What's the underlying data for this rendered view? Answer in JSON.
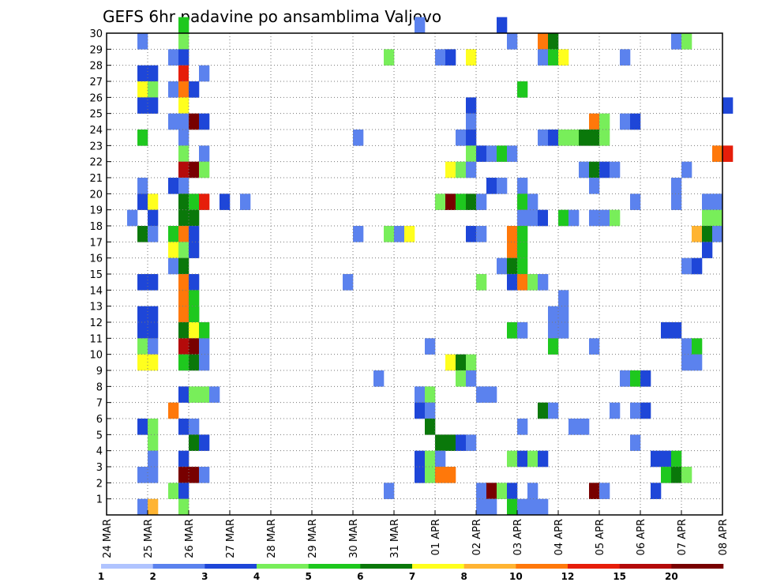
{
  "chart_data": {
    "type": "heatmap",
    "title": "GEFS 6hr padavine po ansamblima Valjevo",
    "xlabel": "",
    "ylabel": "",
    "x_tick_labels": [
      "24 MAR",
      "25 MAR",
      "26 MAR",
      "27 MAR",
      "28 MAR",
      "29 MAR",
      "30 MAR",
      "31 MAR",
      "01 APR",
      "02 APR",
      "03 APR",
      "04 APR",
      "05 APR",
      "06 APR",
      "07 APR",
      "08 APR"
    ],
    "y_tick_labels": [
      "1",
      "2",
      "3",
      "4",
      "5",
      "6",
      "7",
      "8",
      "9",
      "10",
      "11",
      "12",
      "13",
      "14",
      "15",
      "16",
      "17",
      "18",
      "19",
      "20",
      "21",
      "22",
      "23",
      "24",
      "25",
      "26",
      "27",
      "28",
      "29",
      "30"
    ],
    "time_steps_per_day": 4,
    "x_range_steps": [
      0,
      60
    ],
    "y_range": [
      0,
      30
    ],
    "grid": true,
    "grid_style": "dotted",
    "legend_placement": "bottom",
    "colorbar": {
      "labels": [
        "1",
        "2",
        "3",
        "4",
        "5",
        "6",
        "7",
        "8",
        "10",
        "12",
        "15",
        "20"
      ],
      "colors": [
        "#b0c4ff",
        "#5b82ee",
        "#1e46d8",
        "#78ee5a",
        "#1ec81e",
        "#0a780a",
        "#ffff1e",
        "#ffb432",
        "#ff780a",
        "#e61e0a",
        "#b40a0a",
        "#780000"
      ]
    },
    "cells": [
      [
        7,
        30,
        4
      ],
      [
        30,
        30,
        1
      ],
      [
        38,
        30,
        2
      ],
      [
        3,
        29,
        1
      ],
      [
        7,
        29,
        3
      ],
      [
        39,
        29,
        1
      ],
      [
        42,
        29,
        8
      ],
      [
        43,
        29,
        5
      ],
      [
        55,
        29,
        1
      ],
      [
        56,
        29,
        3
      ],
      [
        6,
        28,
        1
      ],
      [
        7,
        28,
        2
      ],
      [
        27,
        28,
        3
      ],
      [
        32,
        28,
        1
      ],
      [
        33,
        28,
        2
      ],
      [
        35,
        28,
        6
      ],
      [
        42,
        28,
        1
      ],
      [
        43,
        28,
        4
      ],
      [
        44,
        28,
        6
      ],
      [
        50,
        28,
        1
      ],
      [
        3,
        27,
        2
      ],
      [
        4,
        27,
        2
      ],
      [
        7,
        27,
        9
      ],
      [
        8,
        27,
        12
      ],
      [
        9,
        27,
        1
      ],
      [
        3,
        26,
        6
      ],
      [
        4,
        26,
        3
      ],
      [
        6,
        26,
        1
      ],
      [
        7,
        26,
        8
      ],
      [
        8,
        26,
        2
      ],
      [
        40,
        26,
        4
      ],
      [
        3,
        25,
        2
      ],
      [
        4,
        25,
        2
      ],
      [
        7,
        25,
        6
      ],
      [
        35,
        25,
        2
      ],
      [
        60,
        25,
        2
      ],
      [
        6,
        24,
        1
      ],
      [
        7,
        24,
        1
      ],
      [
        8,
        24,
        11
      ],
      [
        9,
        24,
        2
      ],
      [
        35,
        24,
        1
      ],
      [
        47,
        24,
        8
      ],
      [
        48,
        24,
        3
      ],
      [
        50,
        24,
        1
      ],
      [
        51,
        24,
        2
      ],
      [
        3,
        23,
        4
      ],
      [
        7,
        23,
        1
      ],
      [
        24,
        23,
        1
      ],
      [
        34,
        23,
        1
      ],
      [
        35,
        23,
        2
      ],
      [
        42,
        23,
        1
      ],
      [
        43,
        23,
        2
      ],
      [
        44,
        23,
        3
      ],
      [
        45,
        23,
        3
      ],
      [
        46,
        23,
        5
      ],
      [
        47,
        23,
        5
      ],
      [
        48,
        23,
        3
      ],
      [
        7,
        22,
        3
      ],
      [
        9,
        22,
        1
      ],
      [
        35,
        22,
        3
      ],
      [
        36,
        22,
        2
      ],
      [
        37,
        22,
        1
      ],
      [
        38,
        22,
        4
      ],
      [
        39,
        22,
        1
      ],
      [
        59,
        22,
        8
      ],
      [
        60,
        22,
        9
      ],
      [
        7,
        21,
        10
      ],
      [
        8,
        21,
        11
      ],
      [
        9,
        21,
        3
      ],
      [
        33,
        21,
        6
      ],
      [
        34,
        21,
        3
      ],
      [
        35,
        21,
        1
      ],
      [
        46,
        21,
        1
      ],
      [
        47,
        21,
        5
      ],
      [
        48,
        21,
        2
      ],
      [
        49,
        21,
        1
      ],
      [
        56,
        21,
        1
      ],
      [
        3,
        20,
        1
      ],
      [
        6,
        20,
        2
      ],
      [
        7,
        20,
        1
      ],
      [
        37,
        20,
        2
      ],
      [
        38,
        20,
        1
      ],
      [
        40,
        20,
        1
      ],
      [
        47,
        20,
        1
      ],
      [
        55,
        20,
        1
      ],
      [
        3,
        19,
        2
      ],
      [
        4,
        19,
        6
      ],
      [
        7,
        19,
        5
      ],
      [
        8,
        19,
        4
      ],
      [
        9,
        19,
        9
      ],
      [
        11,
        19,
        2
      ],
      [
        13,
        19,
        1
      ],
      [
        32,
        19,
        3
      ],
      [
        33,
        19,
        11
      ],
      [
        34,
        19,
        4
      ],
      [
        35,
        19,
        5
      ],
      [
        36,
        19,
        1
      ],
      [
        40,
        19,
        4
      ],
      [
        41,
        19,
        1
      ],
      [
        51,
        19,
        1
      ],
      [
        55,
        19,
        1
      ],
      [
        58,
        19,
        1
      ],
      [
        59,
        19,
        1
      ],
      [
        2,
        18,
        1
      ],
      [
        4,
        18,
        2
      ],
      [
        7,
        18,
        5
      ],
      [
        8,
        18,
        5
      ],
      [
        40,
        18,
        1
      ],
      [
        41,
        18,
        1
      ],
      [
        42,
        18,
        2
      ],
      [
        43,
        18,
        12
      ],
      [
        44,
        18,
        4
      ],
      [
        45,
        18,
        1
      ],
      [
        47,
        18,
        1
      ],
      [
        48,
        18,
        1
      ],
      [
        49,
        18,
        3
      ],
      [
        58,
        18,
        3
      ],
      [
        59,
        18,
        3
      ],
      [
        3,
        17,
        5
      ],
      [
        4,
        17,
        1
      ],
      [
        6,
        17,
        4
      ],
      [
        7,
        17,
        8
      ],
      [
        8,
        17,
        2
      ],
      [
        24,
        17,
        1
      ],
      [
        27,
        17,
        3
      ],
      [
        28,
        17,
        1
      ],
      [
        29,
        17,
        6
      ],
      [
        35,
        17,
        2
      ],
      [
        36,
        17,
        1
      ],
      [
        39,
        17,
        8
      ],
      [
        40,
        17,
        4
      ],
      [
        57,
        17,
        7
      ],
      [
        58,
        17,
        5
      ],
      [
        59,
        17,
        1
      ],
      [
        6,
        16,
        6
      ],
      [
        7,
        16,
        3
      ],
      [
        8,
        16,
        2
      ],
      [
        39,
        16,
        8
      ],
      [
        40,
        16,
        4
      ],
      [
        58,
        16,
        2
      ],
      [
        6,
        15,
        1
      ],
      [
        7,
        15,
        5
      ],
      [
        38,
        15,
        1
      ],
      [
        39,
        15,
        5
      ],
      [
        40,
        15,
        4
      ],
      [
        56,
        15,
        1
      ],
      [
        57,
        15,
        2
      ],
      [
        3,
        14,
        2
      ],
      [
        4,
        14,
        2
      ],
      [
        7,
        14,
        8
      ],
      [
        8,
        14,
        2
      ],
      [
        23,
        14,
        1
      ],
      [
        36,
        14,
        3
      ],
      [
        39,
        14,
        2
      ],
      [
        40,
        14,
        8
      ],
      [
        41,
        14,
        3
      ],
      [
        42,
        14,
        1
      ],
      [
        7,
        13,
        8
      ],
      [
        8,
        13,
        4
      ],
      [
        44,
        13,
        1
      ],
      [
        7,
        12,
        8
      ],
      [
        8,
        12,
        4
      ],
      [
        3,
        12,
        2
      ],
      [
        4,
        12,
        2
      ],
      [
        43,
        12,
        1
      ],
      [
        44,
        12,
        1
      ],
      [
        8,
        12,
        4
      ],
      [
        7,
        11,
        5
      ],
      [
        8,
        11,
        6
      ],
      [
        9,
        11,
        4
      ],
      [
        3,
        11,
        2
      ],
      [
        4,
        11,
        2
      ],
      [
        39,
        11,
        4
      ],
      [
        40,
        11,
        1
      ],
      [
        43,
        11,
        1
      ],
      [
        44,
        11,
        1
      ],
      [
        54,
        11,
        2
      ],
      [
        55,
        11,
        2
      ],
      [
        7,
        10,
        10
      ],
      [
        8,
        10,
        11
      ],
      [
        9,
        10,
        1
      ],
      [
        3,
        10,
        3
      ],
      [
        4,
        10,
        1
      ],
      [
        31,
        10,
        1
      ],
      [
        43,
        10,
        4
      ],
      [
        47,
        10,
        1
      ],
      [
        56,
        10,
        1
      ],
      [
        57,
        10,
        4
      ],
      [
        3,
        9,
        6
      ],
      [
        4,
        9,
        6
      ],
      [
        7,
        9,
        4
      ],
      [
        8,
        9,
        5
      ],
      [
        9,
        9,
        1
      ],
      [
        33,
        9,
        6
      ],
      [
        34,
        9,
        5
      ],
      [
        35,
        9,
        3
      ],
      [
        56,
        9,
        1
      ],
      [
        57,
        9,
        1
      ],
      [
        26,
        8,
        1
      ],
      [
        34,
        8,
        3
      ],
      [
        35,
        8,
        1
      ],
      [
        50,
        8,
        1
      ],
      [
        51,
        8,
        4
      ],
      [
        52,
        8,
        2
      ],
      [
        7,
        7,
        2
      ],
      [
        8,
        7,
        3
      ],
      [
        9,
        7,
        3
      ],
      [
        10,
        7,
        1
      ],
      [
        30,
        7,
        1
      ],
      [
        31,
        7,
        3
      ],
      [
        36,
        7,
        1
      ],
      [
        37,
        7,
        1
      ],
      [
        6,
        6,
        8
      ],
      [
        30,
        6,
        2
      ],
      [
        31,
        6,
        1
      ],
      [
        42,
        6,
        5
      ],
      [
        43,
        6,
        1
      ],
      [
        49,
        6,
        1
      ],
      [
        51,
        6,
        1
      ],
      [
        52,
        6,
        2
      ],
      [
        3,
        5,
        2
      ],
      [
        4,
        5,
        3
      ],
      [
        7,
        5,
        2
      ],
      [
        8,
        5,
        1
      ],
      [
        31,
        5,
        5
      ],
      [
        40,
        5,
        1
      ],
      [
        45,
        5,
        1
      ],
      [
        46,
        5,
        1
      ],
      [
        4,
        4,
        3
      ],
      [
        8,
        4,
        5
      ],
      [
        9,
        4,
        2
      ],
      [
        32,
        4,
        5
      ],
      [
        33,
        4,
        5
      ],
      [
        34,
        4,
        2
      ],
      [
        35,
        4,
        1
      ],
      [
        51,
        4,
        1
      ],
      [
        4,
        3,
        1
      ],
      [
        7,
        3,
        2
      ],
      [
        30,
        3,
        2
      ],
      [
        31,
        3,
        3
      ],
      [
        32,
        3,
        1
      ],
      [
        39,
        3,
        3
      ],
      [
        40,
        3,
        2
      ],
      [
        41,
        3,
        3
      ],
      [
        42,
        3,
        2
      ],
      [
        53,
        3,
        2
      ],
      [
        54,
        3,
        2
      ],
      [
        55,
        3,
        4
      ],
      [
        3,
        2,
        1
      ],
      [
        4,
        2,
        1
      ],
      [
        7,
        2,
        11
      ],
      [
        8,
        2,
        11
      ],
      [
        9,
        2,
        1
      ],
      [
        30,
        2,
        2
      ],
      [
        31,
        2,
        3
      ],
      [
        32,
        2,
        8
      ],
      [
        33,
        2,
        8
      ],
      [
        54,
        2,
        4
      ],
      [
        55,
        2,
        5
      ],
      [
        56,
        2,
        3
      ],
      [
        6,
        1,
        3
      ],
      [
        7,
        1,
        2
      ],
      [
        27,
        1,
        1
      ],
      [
        36,
        1,
        1
      ],
      [
        37,
        1,
        11
      ],
      [
        38,
        1,
        3
      ],
      [
        39,
        1,
        2
      ],
      [
        41,
        1,
        1
      ],
      [
        47,
        1,
        11
      ],
      [
        48,
        1,
        1
      ],
      [
        53,
        1,
        2
      ],
      [
        3,
        0,
        1
      ],
      [
        4,
        0,
        7
      ],
      [
        7,
        0,
        3
      ],
      [
        36,
        0,
        1
      ],
      [
        37,
        0,
        1
      ],
      [
        39,
        0,
        4
      ],
      [
        40,
        0,
        1
      ],
      [
        41,
        0,
        1
      ],
      [
        42,
        0,
        1
      ]
    ]
  }
}
